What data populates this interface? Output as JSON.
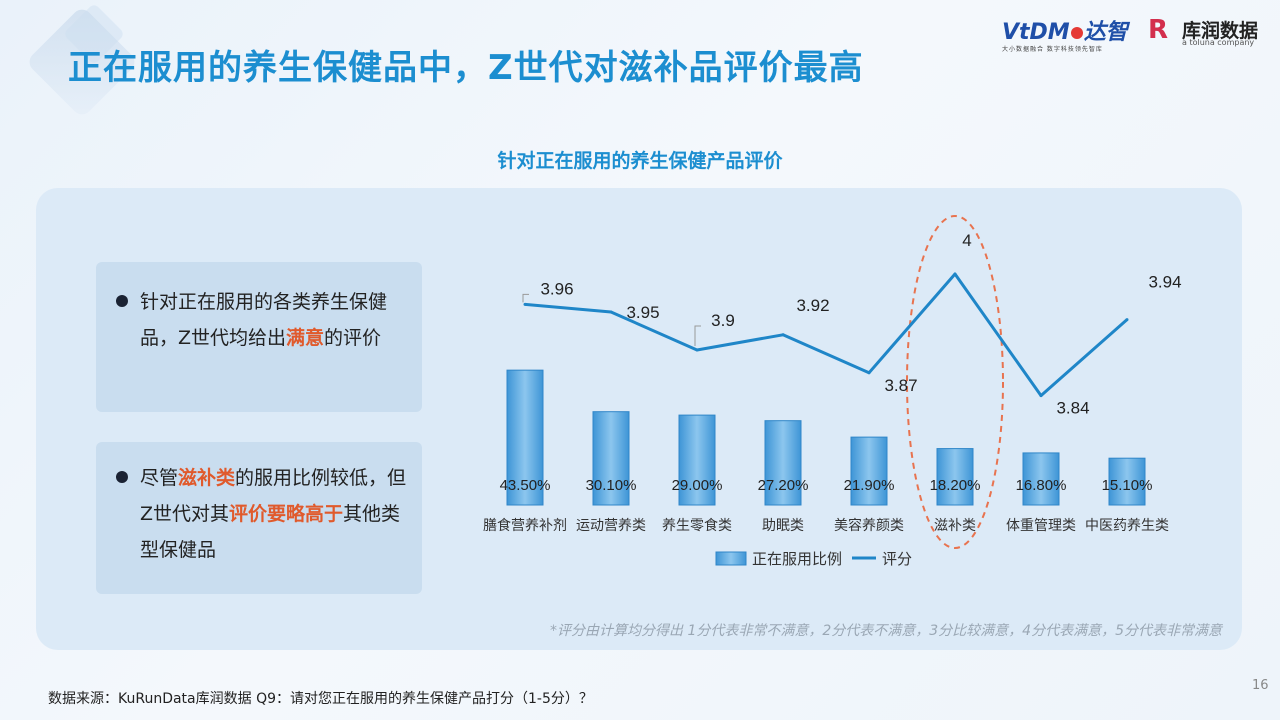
{
  "header": {
    "title": "正在服用的养生保健品中，Z世代对滋补品评价最高",
    "logo_vtdm": {
      "brand_latin": "VtDM",
      "brand_cn": "达智",
      "tagline": "大小数据融合 数字科技领先智库"
    },
    "logo_kurun": {
      "mark": "R",
      "name": "库润数据",
      "sub": "a toluna company"
    }
  },
  "notes": [
    {
      "parts": [
        {
          "text": "针对正在服用的各类养生保健品，Z世代均给出",
          "highlight": false
        },
        {
          "text": "满意",
          "highlight": true
        },
        {
          "text": "的评价",
          "highlight": false
        }
      ]
    },
    {
      "parts": [
        {
          "text": "尽管",
          "highlight": false
        },
        {
          "text": "滋补类",
          "highlight": true
        },
        {
          "text": "的服用比例较低，但Z世代对其",
          "highlight": false
        },
        {
          "text": "评价要略高于",
          "highlight": true
        },
        {
          "text": "其他类型保健品",
          "highlight": false
        }
      ]
    }
  ],
  "chart_title": "针对正在服用的养生保健产品评价",
  "chart_data": {
    "type": "bar",
    "categories": [
      "膳食营养补剂",
      "运动营养类",
      "养生零食类",
      "助眠类",
      "美容养颜类",
      "滋补类",
      "体重管理类",
      "中医药养生类"
    ],
    "series": [
      {
        "name": "正在服用比例",
        "type": "bar",
        "values": [
          43.5,
          30.1,
          29.0,
          27.2,
          21.9,
          18.2,
          16.8,
          15.1
        ],
        "labels": [
          "43.50%",
          "30.10%",
          "29.00%",
          "27.20%",
          "21.90%",
          "18.20%",
          "16.80%",
          "15.10%"
        ],
        "color": "#5aaae0"
      },
      {
        "name": "评分",
        "type": "line",
        "values": [
          3.96,
          3.95,
          3.9,
          3.92,
          3.87,
          4.0,
          3.84,
          3.94
        ],
        "labels": [
          "3.96",
          "3.95",
          "3.9",
          "3.92",
          "3.87",
          "4",
          "3.84",
          "3.94"
        ],
        "color": "#1f86c8"
      }
    ],
    "highlight_category": "滋补类",
    "highlight_color": "#e8734f",
    "legend_position": "bottom"
  },
  "footnote": "*评分由计算均分得出 1分代表非常不满意，2分代表不满意，3分比较满意，4分代表满意，5分代表非常满意",
  "source": "数据来源：KuRunData库润数据 Q9：请对您正在服用的养生保健产品打分（1-5分）？",
  "page_number": "16",
  "colors": {
    "title": "#1c8ed0",
    "accent": "#e05a2c",
    "panel": "#dceaf7",
    "note_box": "#c9ddef"
  }
}
